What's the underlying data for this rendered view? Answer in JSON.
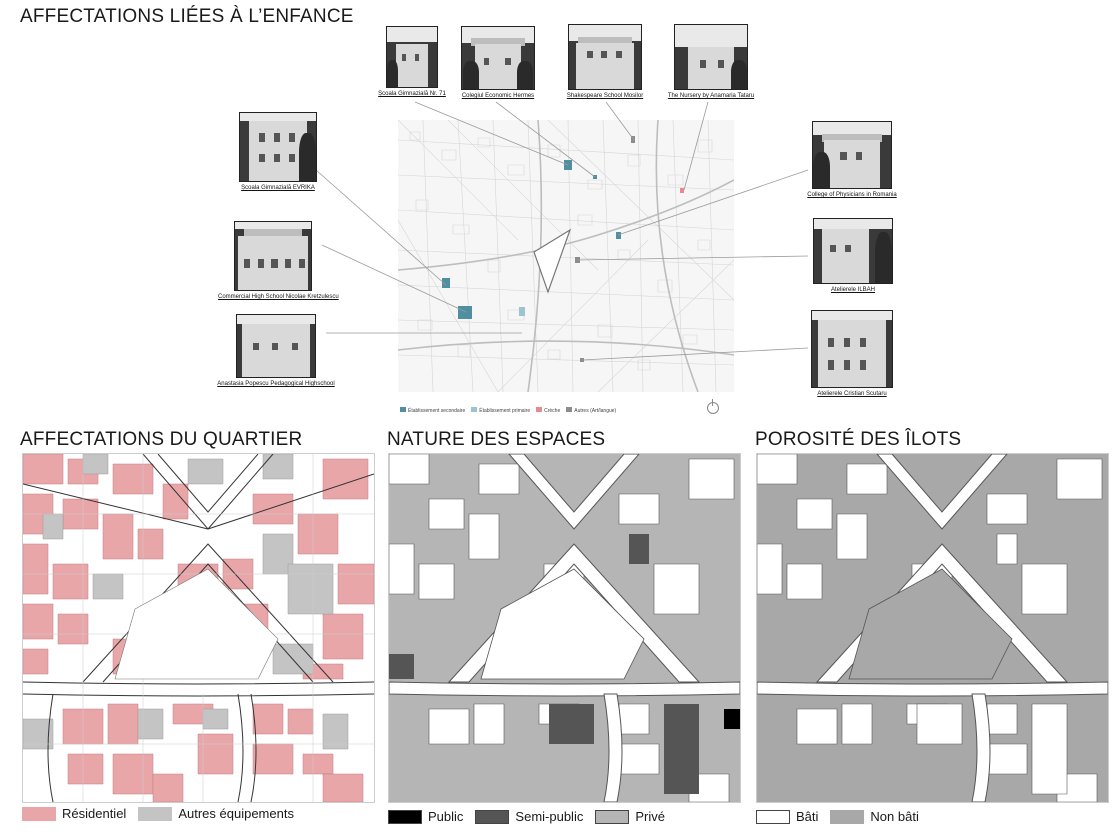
{
  "titles": {
    "top": "AFFECTATIONS LIÉES À L’ENFANCE",
    "quartier": "AFFECTATIONS DU QUARTIER",
    "espaces": "NATURE DES ESPACES",
    "porosite": "POROSITÉ DES ÎLOTS"
  },
  "photos": [
    {
      "caption": "Școala Gimnazială Nr. 71"
    },
    {
      "caption": "Colegiul Economic Hermes"
    },
    {
      "caption": "Shakespeare School Mosilor"
    },
    {
      "caption": "The Nursery by Anamaria Tataru"
    },
    {
      "caption": "Școala Gimnazială EVRIKA"
    },
    {
      "caption": "Commercial High School Nicolae Kretzulescu"
    },
    {
      "caption": "Anastasia Popescu Pedagogical Highschool"
    },
    {
      "caption": "College of Physicians in Romania"
    },
    {
      "caption": "Atelierele ILBAH"
    },
    {
      "caption": "Atelierele Cristian Scutaru"
    }
  ],
  "mini_legend": {
    "secondaire": "Établissement secondaire",
    "primaire": "Établissement primaire",
    "creche": "Crèche",
    "autres": "Autres (Art/langue)"
  },
  "legend_quartier": {
    "residentiel": "Résidentiel",
    "autres": "Autres équipements"
  },
  "legend_espaces": {
    "public": "Public",
    "semi_public": "Semi-public",
    "prive": "Privé"
  },
  "legend_porosite": {
    "bati": "Bâti",
    "non_bati": "Non bâti"
  },
  "colors": {
    "residentiel": "#e8a6a9",
    "autres": "#c4c4c4",
    "public": "#000000",
    "semi_public": "#555555",
    "prive": "#b5b5b5",
    "bati": "#ffffff",
    "non_bati": "#a8a8a8",
    "secondaire": "#4f8fa0",
    "primaire": "#9cc3cf",
    "creche": "#e78a90",
    "autres_enf": "#8c8c8c"
  }
}
